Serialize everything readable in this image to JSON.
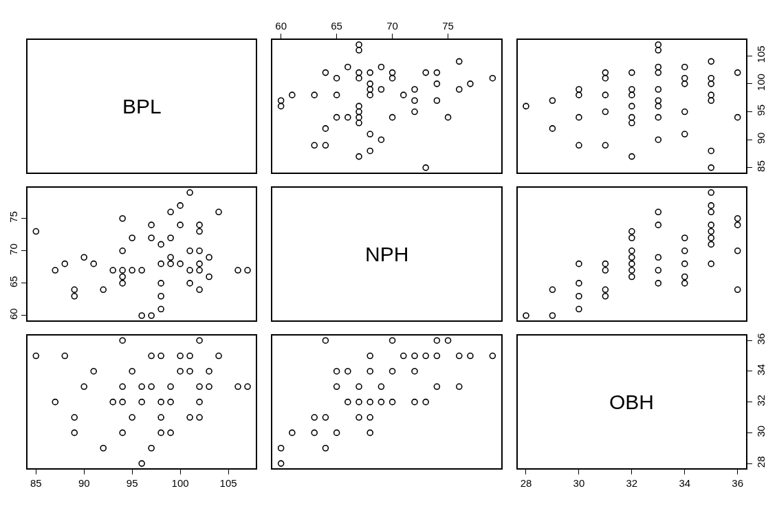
{
  "chart_data": [
    {
      "type": "other",
      "title": "BPL"
    },
    {
      "type": "scatter",
      "marker": "circle",
      "tick_labels": "x",
      "xlim": [
        59.24,
        79.76
      ],
      "xticks": [
        60,
        65,
        70,
        75
      ],
      "ylim": [
        84.12,
        107.88
      ],
      "yticks": [
        85,
        90,
        95,
        100,
        105
      ],
      "series": [
        {
          "color": "#000000",
          "x": [
            73,
            67,
            68,
            64,
            63,
            69,
            68,
            64,
            67,
            75,
            70,
            67,
            66,
            65,
            72,
            67,
            67,
            60,
            74,
            72,
            60,
            71,
            68,
            65,
            63,
            61,
            76,
            72,
            69,
            68,
            77,
            74,
            68,
            79,
            70,
            67,
            65,
            74,
            73,
            70,
            68,
            67,
            64,
            69,
            66,
            76,
            67,
            67
          ],
          "values": [
            85,
            87,
            88,
            89,
            89,
            90,
            91,
            92,
            93,
            94,
            94,
            94,
            94,
            94,
            95,
            95,
            96,
            96,
            97,
            97,
            97,
            98,
            98,
            98,
            98,
            98,
            99,
            99,
            99,
            99,
            100,
            100,
            100,
            101,
            101,
            101,
            101,
            102,
            102,
            102,
            102,
            102,
            102,
            103,
            103,
            104,
            106,
            107
          ]
        }
      ]
    },
    {
      "type": "scatter",
      "marker": "circle",
      "tick_labels": "y",
      "xlim": [
        27.68,
        36.32
      ],
      "xticks": [
        28,
        30,
        32,
        34,
        36
      ],
      "ylim": [
        84.12,
        107.88
      ],
      "yticks": [
        85,
        90,
        95,
        100,
        105
      ],
      "series": [
        {
          "color": "#000000",
          "x": [
            36,
            36,
            35,
            35,
            35,
            35,
            35,
            35,
            35,
            34,
            34,
            34,
            34,
            34,
            33,
            33,
            33,
            33,
            33,
            33,
            33,
            33,
            33,
            32,
            32,
            32,
            32,
            32,
            32,
            32,
            31,
            31,
            31,
            31,
            31,
            30,
            30,
            30,
            30,
            29,
            29,
            28
          ],
          "values": [
            94,
            102,
            85,
            88,
            97,
            98,
            100,
            101,
            104,
            91,
            95,
            100,
            101,
            103,
            90,
            94,
            96,
            97,
            99,
            102,
            103,
            106,
            107,
            87,
            93,
            94,
            96,
            98,
            99,
            102,
            89,
            95,
            98,
            101,
            102,
            89,
            94,
            98,
            99,
            92,
            97,
            96
          ]
        }
      ]
    },
    {
      "type": "scatter",
      "marker": "circle",
      "tick_labels": "y",
      "xlim": [
        84.12,
        107.88
      ],
      "xticks": [
        85,
        90,
        95,
        100,
        105
      ],
      "ylim": [
        59.24,
        79.76
      ],
      "yticks": [
        60,
        65,
        70,
        75
      ],
      "series": [
        {
          "color": "#000000",
          "x": [
            85,
            87,
            88,
            89,
            89,
            90,
            91,
            92,
            93,
            94,
            94,
            94,
            94,
            94,
            95,
            95,
            96,
            96,
            97,
            97,
            97,
            98,
            98,
            98,
            98,
            98,
            99,
            99,
            99,
            99,
            100,
            100,
            100,
            101,
            101,
            101,
            101,
            102,
            102,
            102,
            102,
            102,
            102,
            103,
            103,
            104,
            106,
            107
          ],
          "values": [
            73,
            67,
            68,
            64,
            63,
            69,
            68,
            64,
            67,
            75,
            70,
            67,
            66,
            65,
            72,
            67,
            67,
            60,
            74,
            72,
            60,
            71,
            68,
            65,
            63,
            61,
            76,
            72,
            69,
            68,
            77,
            74,
            68,
            79,
            70,
            67,
            65,
            74,
            73,
            70,
            68,
            67,
            64,
            69,
            66,
            76,
            67,
            67
          ]
        }
      ]
    },
    {
      "type": "other",
      "title": "NPH"
    },
    {
      "type": "scatter",
      "marker": "circle",
      "tick_labels": false,
      "xlim": [
        27.68,
        36.32
      ],
      "xticks": [
        28,
        30,
        32,
        34,
        36
      ],
      "ylim": [
        59.24,
        79.76
      ],
      "yticks": [
        60,
        65,
        70,
        75
      ],
      "series": [
        {
          "color": "#000000",
          "x": [
            36,
            36,
            36,
            36,
            35,
            35,
            35,
            35,
            35,
            35,
            35,
            35,
            34,
            34,
            34,
            34,
            34,
            33,
            33,
            33,
            33,
            33,
            32,
            32,
            32,
            32,
            32,
            32,
            32,
            31,
            31,
            31,
            31,
            30,
            30,
            30,
            30,
            29,
            29,
            28
          ],
          "values": [
            64,
            70,
            74,
            75,
            68,
            71,
            72,
            73,
            74,
            76,
            77,
            79,
            65,
            66,
            68,
            70,
            72,
            65,
            67,
            69,
            74,
            76,
            66,
            67,
            68,
            69,
            70,
            72,
            73,
            63,
            64,
            67,
            68,
            61,
            63,
            65,
            68,
            60,
            64,
            60
          ]
        }
      ]
    },
    {
      "type": "scatter",
      "marker": "circle",
      "tick_labels": "x",
      "xlim": [
        84.12,
        107.88
      ],
      "xticks": [
        85,
        90,
        95,
        100,
        105
      ],
      "ylim": [
        27.68,
        36.32
      ],
      "yticks": [
        28,
        30,
        32,
        34,
        36
      ],
      "series": [
        {
          "color": "#000000",
          "x": [
            94,
            102,
            85,
            88,
            97,
            98,
            100,
            101,
            104,
            91,
            95,
            100,
            101,
            103,
            90,
            94,
            96,
            97,
            99,
            102,
            103,
            106,
            107,
            87,
            93,
            94,
            96,
            98,
            99,
            102,
            89,
            95,
            98,
            101,
            102,
            89,
            94,
            98,
            99,
            92,
            97,
            96
          ],
          "values": [
            36,
            36,
            35,
            35,
            35,
            35,
            35,
            35,
            35,
            34,
            34,
            34,
            34,
            34,
            33,
            33,
            33,
            33,
            33,
            33,
            33,
            33,
            33,
            32,
            32,
            32,
            32,
            32,
            32,
            32,
            31,
            31,
            31,
            31,
            31,
            30,
            30,
            30,
            30,
            29,
            29,
            28
          ]
        }
      ]
    },
    {
      "type": "scatter",
      "marker": "circle",
      "tick_labels": false,
      "xlim": [
        59.24,
        79.76
      ],
      "xticks": [
        60,
        65,
        70,
        75
      ],
      "ylim": [
        27.68,
        36.32
      ],
      "yticks": [
        28,
        30,
        32,
        34,
        36
      ],
      "series": [
        {
          "color": "#000000",
          "x": [
            64,
            70,
            74,
            75,
            68,
            71,
            72,
            73,
            74,
            76,
            77,
            79,
            65,
            66,
            68,
            70,
            72,
            65,
            67,
            69,
            74,
            76,
            66,
            67,
            68,
            69,
            70,
            72,
            73,
            63,
            64,
            67,
            68,
            61,
            63,
            65,
            68,
            60,
            64,
            60
          ],
          "values": [
            36,
            36,
            36,
            36,
            35,
            35,
            35,
            35,
            35,
            35,
            35,
            35,
            34,
            34,
            34,
            34,
            34,
            33,
            33,
            33,
            33,
            33,
            32,
            32,
            32,
            32,
            32,
            32,
            32,
            31,
            31,
            31,
            31,
            30,
            30,
            30,
            30,
            29,
            29,
            28
          ]
        }
      ]
    },
    {
      "type": "scatter",
      "title": "OBH",
      "xlim": [
        27.68,
        36.32
      ],
      "xticks": [
        28,
        30,
        32,
        34,
        36
      ],
      "ylim": [
        27.68,
        36.32
      ],
      "yticks": [
        28,
        30,
        32,
        34,
        36
      ]
    }
  ]
}
